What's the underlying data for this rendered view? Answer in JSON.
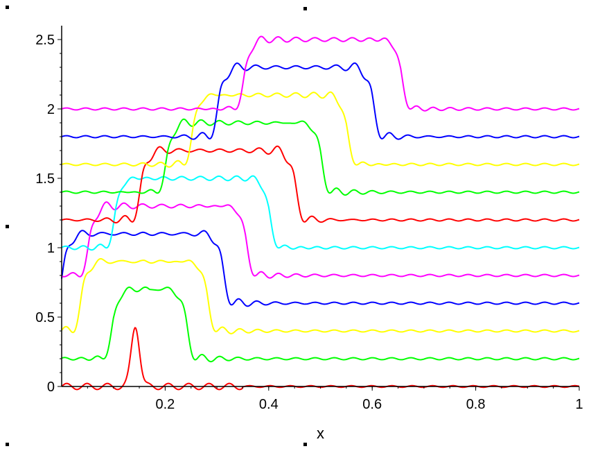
{
  "chart_data": {
    "type": "line",
    "title": "",
    "xlabel": "x",
    "ylabel": "",
    "xlim": [
      0,
      1
    ],
    "ylim": [
      0,
      2.6
    ],
    "x_ticks": [
      {
        "value": 0.2,
        "label": "0.2"
      },
      {
        "value": 0.4,
        "label": "0.4"
      },
      {
        "value": 0.6,
        "label": "0.6"
      },
      {
        "value": 0.8,
        "label": "0.8"
      },
      {
        "value": 1.0,
        "label": "1"
      }
    ],
    "y_ticks": [
      {
        "value": 0,
        "label": "0"
      },
      {
        "value": 0.5,
        "label": "0.5"
      },
      {
        "value": 1.0,
        "label": "1"
      },
      {
        "value": 1.5,
        "label": "1.5"
      },
      {
        "value": 2.0,
        "label": "2"
      },
      {
        "value": 2.5,
        "label": "2.5"
      }
    ],
    "grid": false,
    "legend": "none",
    "series": [
      {
        "color": "#ff0000",
        "baseline": 0.0,
        "plateau": 0.0,
        "x_start": 0.12,
        "x_end": 0.165,
        "peak": 0.44,
        "ripple": 0.01
      },
      {
        "color": "#00ff00",
        "baseline": 0.2,
        "plateau": 0.7,
        "x_start": 0.1,
        "x_end": 0.24,
        "ripple": 0.012
      },
      {
        "color": "#ffff00",
        "baseline": 0.4,
        "plateau": 0.9,
        "x_start": 0.04,
        "x_end": 0.28,
        "ripple": 0.012
      },
      {
        "color": "#0000ff",
        "baseline": 0.6,
        "plateau": 1.1,
        "x_start": 0.005,
        "x_end": 0.31,
        "ripple": 0.012
      },
      {
        "color": "#ff00ff",
        "baseline": 0.8,
        "plateau": 1.3,
        "x_start": 0.055,
        "x_end": 0.355,
        "ripple": 0.012
      },
      {
        "color": "#00ffff",
        "baseline": 1.0,
        "plateau": 1.5,
        "x_start": 0.105,
        "x_end": 0.4,
        "ripple": 0.012
      },
      {
        "color": "#ff0000",
        "baseline": 1.2,
        "plateau": 1.7,
        "x_start": 0.155,
        "x_end": 0.45,
        "ripple": 0.012
      },
      {
        "color": "#00ff00",
        "baseline": 1.4,
        "plateau": 1.9,
        "x_start": 0.205,
        "x_end": 0.5,
        "ripple": 0.012
      },
      {
        "color": "#ffff00",
        "baseline": 1.6,
        "plateau": 2.1,
        "x_start": 0.255,
        "x_end": 0.55,
        "ripple": 0.012
      },
      {
        "color": "#0000ff",
        "baseline": 1.8,
        "plateau": 2.3,
        "x_start": 0.305,
        "x_end": 0.6,
        "ripple": 0.012
      },
      {
        "color": "#ff00ff",
        "baseline": 2.0,
        "plateau": 2.5,
        "x_start": 0.355,
        "x_end": 0.655,
        "ripple": 0.012
      }
    ]
  }
}
